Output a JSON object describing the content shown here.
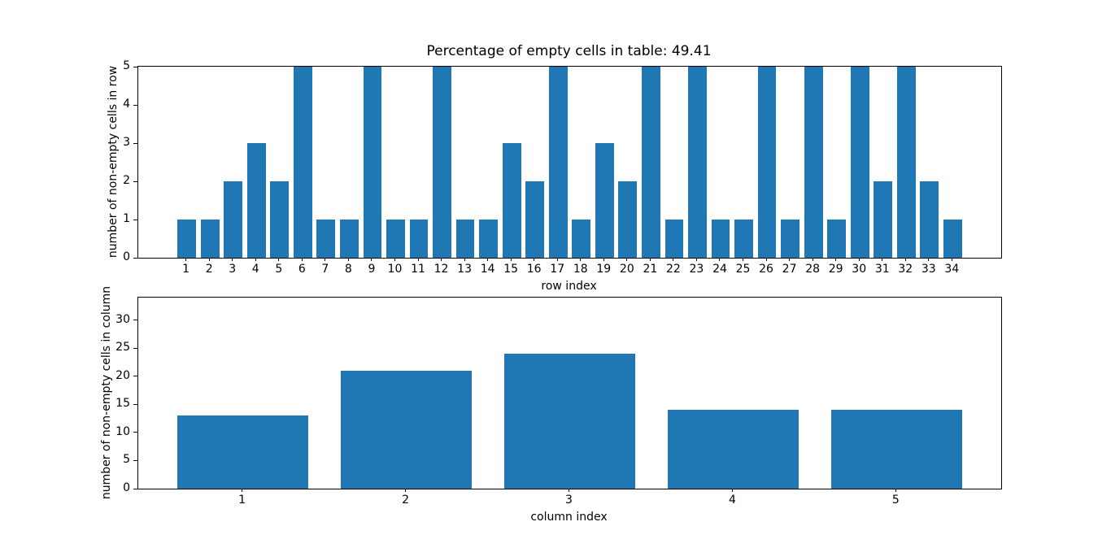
{
  "figure": {
    "background": "#ffffff",
    "bar_color": "#1f77b4",
    "axis_color": "#000000",
    "text_color": "#000000"
  },
  "chart_data": [
    {
      "type": "bar",
      "title": "Percentage of empty cells in table: 49.41",
      "xlabel": "row index",
      "ylabel": "number of non-empty cells in row",
      "categories": [
        1,
        2,
        3,
        4,
        5,
        6,
        7,
        8,
        9,
        10,
        11,
        12,
        13,
        14,
        15,
        16,
        17,
        18,
        19,
        20,
        21,
        22,
        23,
        24,
        25,
        26,
        27,
        28,
        29,
        30,
        31,
        32,
        33,
        34
      ],
      "values": [
        1,
        1,
        2,
        3,
        2,
        5,
        1,
        1,
        5,
        1,
        1,
        5,
        1,
        1,
        3,
        2,
        5,
        1,
        3,
        2,
        5,
        1,
        5,
        1,
        1,
        5,
        1,
        5,
        1,
        5,
        2,
        5,
        2,
        1
      ],
      "bar_width": 0.8,
      "xlim": [
        -1.09,
        36.09
      ],
      "ylim": [
        0,
        5
      ],
      "yticks": [
        0,
        1,
        2,
        3,
        4,
        5
      ],
      "grid": false,
      "legend": null
    },
    {
      "type": "bar",
      "title": "",
      "xlabel": "column index",
      "ylabel": "number of non-empty cells in column",
      "categories": [
        1,
        2,
        3,
        4,
        5
      ],
      "values": [
        13,
        21,
        24,
        14,
        14
      ],
      "bar_width": 0.8,
      "xlim": [
        0.36,
        5.64
      ],
      "ylim": [
        0,
        34
      ],
      "yticks": [
        0,
        5,
        10,
        15,
        20,
        25,
        30
      ],
      "grid": false,
      "legend": null
    }
  ]
}
